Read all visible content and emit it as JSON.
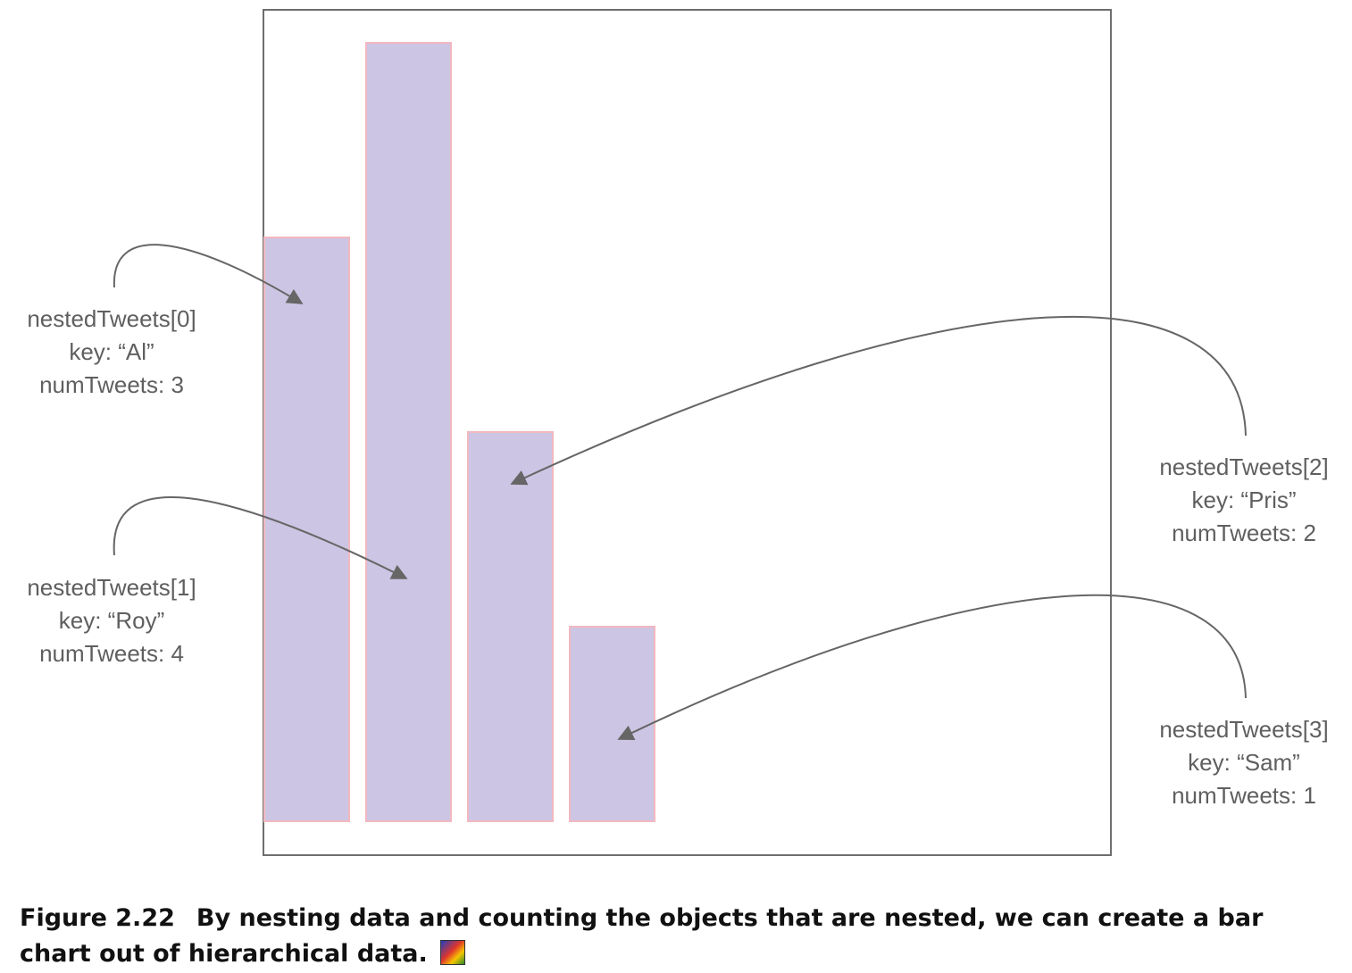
{
  "chart_data": {
    "type": "bar",
    "categories": [
      "Al",
      "Roy",
      "Pris",
      "Sam"
    ],
    "values": [
      3,
      4,
      2,
      1
    ],
    "ylim": [
      0,
      4
    ]
  },
  "labels": [
    {
      "index_label": "nestedTweets[0]",
      "key_label": "key: “Al”",
      "count_label": "numTweets: 3"
    },
    {
      "index_label": "nestedTweets[1]",
      "key_label": "key: “Roy”",
      "count_label": "numTweets: 4"
    },
    {
      "index_label": "nestedTweets[2]",
      "key_label": "key: “Pris”",
      "count_label": "numTweets: 2"
    },
    {
      "index_label": "nestedTweets[3]",
      "key_label": "key: “Sam”",
      "count_label": "numTweets: 1"
    }
  ],
  "caption": {
    "figure_number": "Figure 2.22",
    "text": "By nesting data and counting the objects that are nested, we can create a bar chart out of hierarchical data."
  },
  "colors": {
    "bar_fill": "#cdc5e4",
    "bar_stroke": "#f2b8bf",
    "frame": "#6e6e6e",
    "arrow": "#666666",
    "label_text": "#5f5f5f"
  }
}
